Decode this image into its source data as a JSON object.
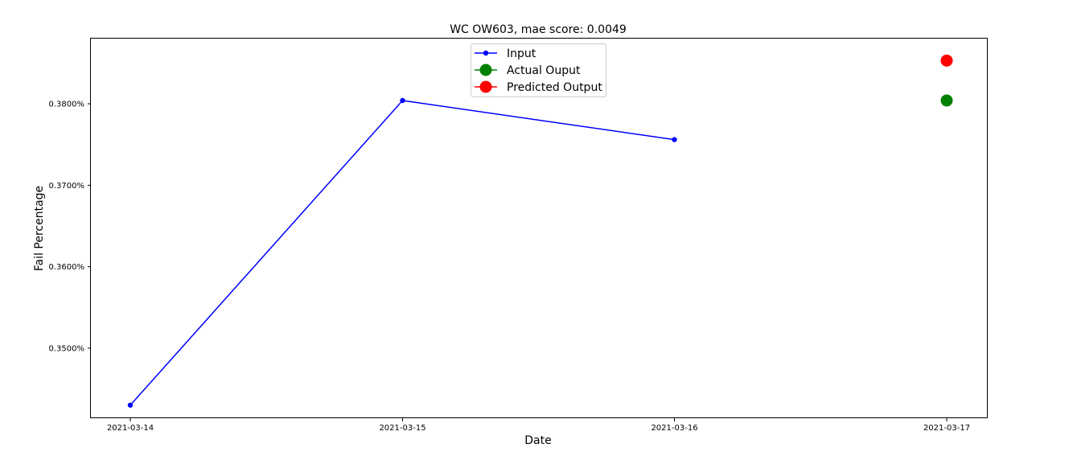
{
  "chart_data": {
    "type": "line",
    "title": "WC OW603, mae score: 0.0049",
    "xlabel": "Date",
    "ylabel": "Fail Percentage",
    "x_ticks": [
      "2021-03-14",
      "2021-03-15",
      "2021-03-16",
      "2021-03-17"
    ],
    "y_ticks": [
      0.35,
      0.36,
      0.37,
      0.38
    ],
    "y_tick_labels": [
      "0.3500%",
      "0.3600%",
      "0.3700%",
      "0.3800%"
    ],
    "ylim": [
      0.3414,
      0.388
    ],
    "grid": false,
    "legend_placement": "upper center",
    "series": [
      {
        "name": "Input",
        "color": "#0000ff",
        "marker": "small-circle",
        "x": [
          "2021-03-14",
          "2021-03-15",
          "2021-03-16"
        ],
        "values": [
          0.343,
          0.3804,
          0.3756
        ]
      },
      {
        "name": "Actual Ouput",
        "color": "#008000",
        "marker": "large-circle",
        "x": [
          "2021-03-17"
        ],
        "values": [
          0.3804
        ]
      },
      {
        "name": "Predicted Output",
        "color": "#ff0000",
        "marker": "large-circle",
        "x": [
          "2021-03-17"
        ],
        "values": [
          0.3853
        ]
      }
    ]
  }
}
